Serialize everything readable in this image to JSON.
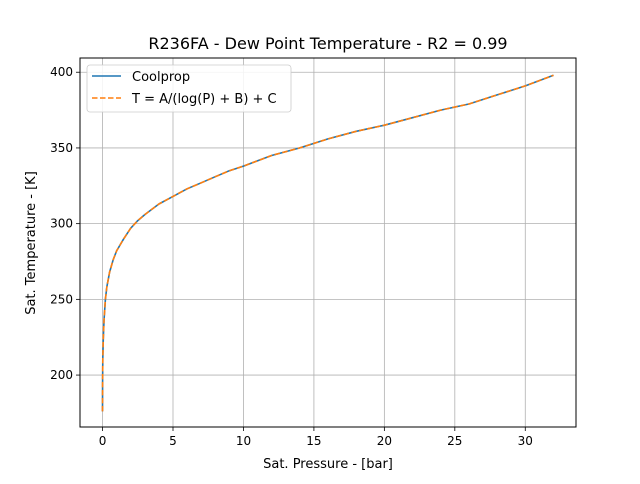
{
  "chart_data": {
    "type": "line",
    "title": "R236FA - Dew Point Temperature - R2 = 0.99",
    "xlabel": "Sat. Pressure - [bar]",
    "ylabel": "Sat. Temperature - [K]",
    "xlim": [
      -1.6,
      33.6
    ],
    "ylim": [
      165.7,
      409.4
    ],
    "xticks": [
      0,
      5,
      10,
      15,
      20,
      25,
      30
    ],
    "yticks": [
      200,
      250,
      300,
      350,
      400
    ],
    "xtick_labels": [
      "0",
      "5",
      "10",
      "15",
      "20",
      "25",
      "30"
    ],
    "ytick_labels": [
      "200",
      "250",
      "300",
      "350",
      "400"
    ],
    "grid": true,
    "legend_position": "top-left",
    "series": [
      {
        "name": "Coolprop",
        "color": "#1f77b4",
        "style": "solid",
        "x": [
          0.0,
          0.005,
          0.02,
          0.05,
          0.1,
          0.2,
          0.3,
          0.5,
          0.75,
          1.0,
          1.5,
          2.0,
          2.5,
          3.0,
          4.0,
          5.0,
          6.0,
          7.0,
          8.0,
          9.0,
          10.0,
          12.0,
          14.0,
          16.0,
          18.0,
          20.0,
          22.0,
          24.0,
          26.0,
          28.0,
          30.0,
          32.0
        ],
        "y": [
          176,
          196,
          211,
          224,
          236,
          250,
          258,
          268,
          276,
          282,
          290,
          297,
          302,
          306,
          313,
          318,
          323,
          327,
          331,
          335,
          338,
          345,
          350,
          356,
          361,
          365,
          370,
          375,
          379,
          385,
          391,
          398
        ]
      },
      {
        "name": "T = A/(log(P) + B) + C",
        "color": "#ff7f0e",
        "style": "dashed",
        "x": [
          0.0,
          0.005,
          0.02,
          0.05,
          0.1,
          0.2,
          0.3,
          0.5,
          0.75,
          1.0,
          1.5,
          2.0,
          2.5,
          3.0,
          4.0,
          5.0,
          6.0,
          7.0,
          8.0,
          9.0,
          10.0,
          12.0,
          14.0,
          16.0,
          18.0,
          20.0,
          22.0,
          24.0,
          26.0,
          28.0,
          30.0,
          32.0
        ],
        "y": [
          176,
          196,
          211,
          224,
          236,
          250,
          258,
          268,
          276,
          282,
          290,
          297,
          302,
          306,
          313,
          318,
          323,
          327,
          331,
          335,
          338,
          345,
          350,
          356,
          361,
          365,
          370,
          375,
          379,
          385,
          391,
          398
        ]
      }
    ]
  }
}
